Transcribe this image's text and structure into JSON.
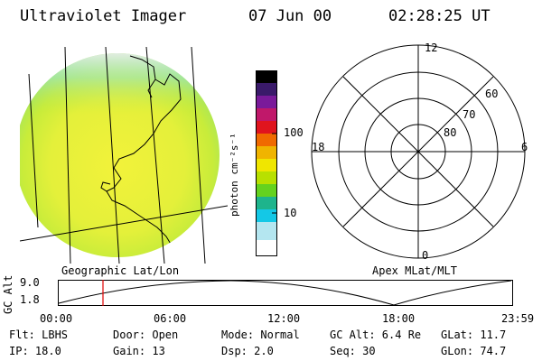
{
  "header": {
    "instrument": "Ultraviolet Imager",
    "date": "07 Jun 00",
    "time": "02:28:25 UT"
  },
  "imager_panel": {
    "caption": "Geographic Lat/Lon",
    "colors": {
      "low": "#e8eef0",
      "mid": "#f2f23a",
      "high": "#b8e83a"
    }
  },
  "colorbar": {
    "label": "photon cm⁻²s⁻¹",
    "ticks": [
      "100",
      "10"
    ],
    "colors_top_to_bottom": [
      "#000000",
      "#3a1a6a",
      "#7a1a9a",
      "#c0186a",
      "#e0141e",
      "#f06a00",
      "#f0b400",
      "#f0e600",
      "#b8e000",
      "#64d21e",
      "#1eb48c",
      "#14c8e6",
      "#b4e6f0",
      "#ffffff"
    ]
  },
  "polar_plot": {
    "caption": "Apex MLat/MLT",
    "mlt_labels": {
      "top": "12",
      "right": "6",
      "bottom": "0",
      "left": "18"
    },
    "lat_labels": [
      "60",
      "70",
      "80"
    ]
  },
  "altitude_plot": {
    "ylabel": "GC Alt",
    "yticks": [
      "9.0",
      "1.8"
    ],
    "xticks": [
      "00:00",
      "06:00",
      "12:00",
      "18:00",
      "23:59"
    ],
    "current_time_marker": "02:28",
    "marker_color": "#e00000"
  },
  "info": {
    "row1": [
      "Flt: LBHS",
      "Door: Open",
      "Mode: Normal",
      "GC Alt: 6.4 Re",
      "GLat: 11.7"
    ],
    "row2": [
      "IP: 18.0",
      "Gain: 13",
      "Dsp:    2.0",
      "Seq: 30",
      "GLon: 74.7"
    ]
  }
}
